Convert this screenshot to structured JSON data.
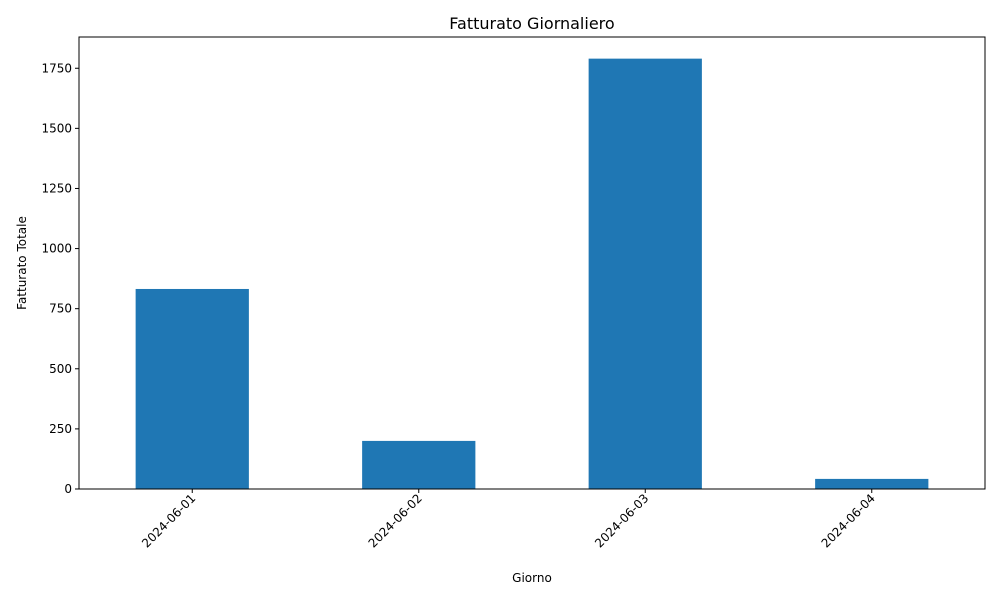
{
  "chart_data": {
    "type": "bar",
    "title": "Fatturato Giornaliero",
    "xlabel": "Giorno",
    "ylabel": "Fatturato Totale",
    "categories": [
      "2024-06-01",
      "2024-06-02",
      "2024-06-03",
      "2024-06-04"
    ],
    "values": [
      832,
      200,
      1790,
      42
    ],
    "ylim": [
      0,
      1880
    ],
    "yticks": [
      0,
      250,
      500,
      750,
      1000,
      1250,
      1500,
      1750
    ],
    "grid": false,
    "legend": "none",
    "bar_color": "#1f77b4"
  }
}
